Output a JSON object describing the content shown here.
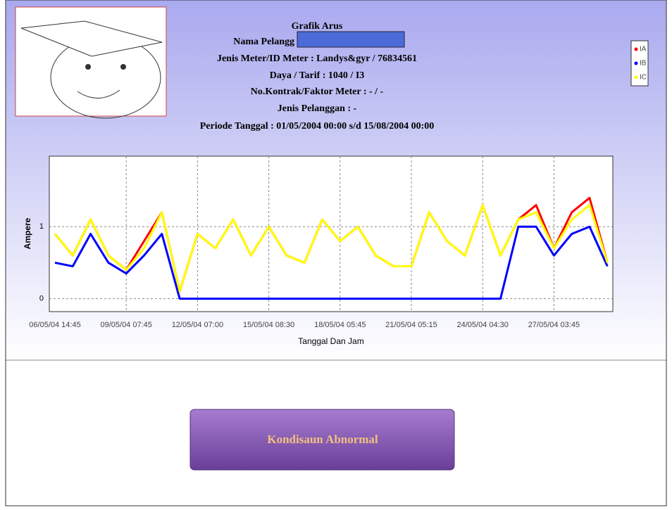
{
  "header": {
    "title": "Grafik Arus",
    "customer": "Nama Pelangg",
    "meter": "Jenis Meter/ID Meter : Landys&gyr / 76834561",
    "tariff": "Daya / Tarif  : 1040 / I3",
    "contract": "No.Kontrak/Faktor Meter : - / -",
    "customer_type": "Jenis Pelanggan : -",
    "period": "Periode Tanggal : 01/05/2004 00:00 s/d 15/08/2004 00:00"
  },
  "chart_data": {
    "type": "line",
    "y_label": "Ampere",
    "x_label": "Tanggal Dan Jam",
    "categories": [
      "06/05/04 14:45",
      null,
      null,
      null,
      "09/05/04 07:45",
      null,
      null,
      null,
      "12/05/04 07:00",
      null,
      null,
      null,
      "15/05/04 08:30",
      null,
      null,
      null,
      "18/05/04 05:45",
      null,
      null,
      null,
      "21/05/04 05:15",
      null,
      null,
      null,
      "24/05/04 04:30",
      null,
      null,
      null,
      "27/05/04 03:45",
      null,
      null,
      null
    ],
    "series": [
      {
        "name": "IA",
        "color": "#ff0000",
        "values": [
          0.9,
          0.6,
          1.1,
          0.6,
          0.4,
          0.8,
          1.2,
          0.1,
          0.9,
          0.7,
          1.1,
          0.6,
          1.0,
          0.6,
          0.5,
          1.1,
          0.8,
          1.0,
          0.6,
          0.45,
          0.45,
          1.2,
          0.8,
          0.6,
          1.3,
          0.6,
          1.1,
          1.3,
          0.7,
          1.2,
          1.4,
          0.5
        ]
      },
      {
        "name": "IB",
        "color": "#0000ff",
        "values": [
          0.5,
          0.45,
          0.9,
          0.5,
          0.35,
          0.6,
          0.9,
          0.0,
          0.0,
          0.0,
          0.0,
          0.0,
          0.0,
          0.0,
          0.0,
          0.0,
          0.0,
          0.0,
          0.0,
          0.0,
          0.0,
          0.0,
          0.0,
          0.0,
          0.0,
          0.0,
          1.0,
          1.0,
          0.6,
          0.9,
          1.0,
          0.45
        ]
      },
      {
        "name": "IC",
        "color": "#ffff00",
        "values": [
          0.9,
          0.6,
          1.1,
          0.6,
          0.4,
          0.7,
          1.2,
          0.1,
          0.9,
          0.7,
          1.1,
          0.6,
          1.0,
          0.6,
          0.5,
          1.1,
          0.8,
          1.0,
          0.6,
          0.45,
          0.45,
          1.2,
          0.8,
          0.6,
          1.3,
          0.6,
          1.1,
          1.2,
          0.7,
          1.1,
          1.3,
          0.5
        ]
      }
    ],
    "ylim": [
      -0.18,
      1.98
    ],
    "yticks": [
      0,
      1
    ],
    "grid": true
  },
  "button": {
    "label": "Kondisaun Abnormal"
  }
}
